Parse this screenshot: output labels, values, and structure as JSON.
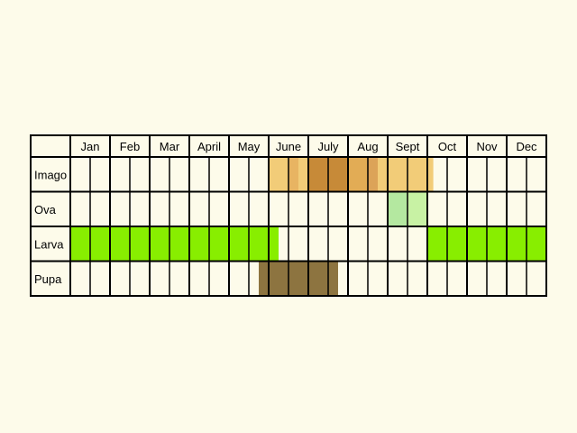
{
  "months": [
    "Jan",
    "Feb",
    "Mar",
    "April",
    "May",
    "June",
    "July",
    "Aug",
    "Sept",
    "Oct",
    "Nov",
    "Dec"
  ],
  "stages": [
    "Imago",
    "Ova",
    "Larva",
    "Pupa"
  ],
  "colors": {
    "background": "#fdfbea",
    "grid_line": "#000000",
    "imago_light": "#f2cc78",
    "imago_mid": "#e8b462",
    "imago_dark": "#c78a38",
    "ova_light": "#c8f2a4",
    "ova_mid": "#b4e8a0",
    "larva": "#88ee00",
    "pupa": "#8d7440"
  },
  "activity": {
    "Imago": [
      {
        "start_month": 5.0,
        "end_month": 9.15,
        "color": "#f2cc78"
      },
      {
        "start_month": 5.5,
        "end_month": 5.75,
        "color": "#e8b462"
      },
      {
        "start_month": 6.0,
        "end_month": 7.0,
        "color": "#c78a38"
      },
      {
        "start_month": 7.0,
        "end_month": 7.5,
        "color": "#e2ac55"
      },
      {
        "start_month": 7.5,
        "end_month": 7.75,
        "color": "#dca358"
      }
    ],
    "Ova": [
      {
        "start_month": 8.0,
        "end_month": 8.5,
        "color": "#b4e8a0"
      },
      {
        "start_month": 8.5,
        "end_month": 9.0,
        "color": "#c8f2a4"
      }
    ],
    "Larva": [
      {
        "start_month": 0.0,
        "end_month": 5.25,
        "color": "#88ee00"
      },
      {
        "start_month": 9.0,
        "end_month": 12.0,
        "color": "#88ee00"
      }
    ],
    "Pupa": [
      {
        "start_month": 4.75,
        "end_month": 6.75,
        "color": "#8d7440"
      }
    ]
  }
}
